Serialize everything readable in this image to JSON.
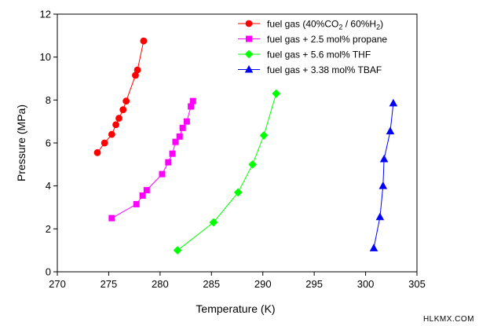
{
  "chart_data": {
    "type": "line",
    "xlabel": "Temperature (K)",
    "ylabel": "Pressure (MPa)",
    "xlim": [
      270,
      305
    ],
    "ylim": [
      0,
      12
    ],
    "xticks": [
      270,
      275,
      280,
      285,
      290,
      295,
      300,
      305
    ],
    "yticks": [
      0,
      2,
      4,
      6,
      8,
      10,
      12
    ],
    "grid": false,
    "legend_position": "top-right",
    "series": [
      {
        "name": "fuel gas (40%CO2 / 60%H2)",
        "name_parts": {
          "pre": "fuel gas (40%CO",
          "sub1": "2",
          "mid": " / 60%H",
          "sub2": "2",
          "post": ")"
        },
        "color": "#ff0000",
        "marker": "circle",
        "x": [
          273.9,
          274.6,
          275.3,
          275.7,
          276.0,
          276.4,
          276.7,
          277.6,
          277.8,
          278.4
        ],
        "y": [
          5.55,
          6.0,
          6.4,
          6.85,
          7.15,
          7.55,
          7.95,
          9.15,
          9.4,
          10.75
        ]
      },
      {
        "name": "fuel gas + 2.5 mol% propane",
        "color": "#ff00ff",
        "marker": "square",
        "x": [
          275.3,
          277.7,
          278.3,
          278.7,
          280.2,
          280.8,
          281.2,
          281.5,
          281.9,
          282.2,
          282.6,
          283.0,
          283.2
        ],
        "y": [
          2.5,
          3.15,
          3.55,
          3.8,
          4.55,
          5.1,
          5.5,
          6.05,
          6.3,
          6.7,
          7.0,
          7.7,
          7.95
        ]
      },
      {
        "name": "fuel gas + 5.6 mol% THF",
        "color": "#00ff00",
        "marker": "diamond",
        "x": [
          281.7,
          285.2,
          287.6,
          289.0,
          290.1,
          291.3
        ],
        "y": [
          1.0,
          2.3,
          3.7,
          5.0,
          6.35,
          8.3
        ]
      },
      {
        "name": "fuel gas + 3.38 mol% TBAF",
        "color": "#0000ff",
        "marker": "triangle",
        "x": [
          300.8,
          301.4,
          301.7,
          301.8,
          302.4,
          302.7
        ],
        "y": [
          1.1,
          2.55,
          4.0,
          5.25,
          6.55,
          7.85
        ]
      }
    ]
  },
  "watermark": "HLKMX.COM"
}
